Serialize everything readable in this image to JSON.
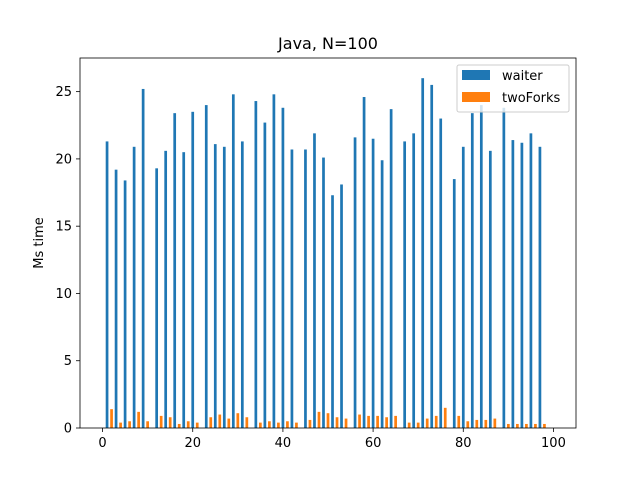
{
  "chart_data": {
    "type": "bar",
    "title": "Java, N=100",
    "xlabel": "",
    "ylabel": "Ms time",
    "xlim": [
      -5,
      105
    ],
    "ylim": [
      0,
      27.5
    ],
    "x_ticks": [
      "0",
      "20",
      "40",
      "60",
      "80",
      "100"
    ],
    "y_ticks": [
      "0",
      "5",
      "10",
      "15",
      "20",
      "25"
    ],
    "legend_position": "top-right",
    "grid": false,
    "series": [
      {
        "name": "waiter",
        "color": "#1f77b4",
        "x": [
          1,
          3,
          5,
          7,
          9,
          12,
          14,
          16,
          18,
          20,
          23,
          25,
          27,
          29,
          31,
          34,
          36,
          38,
          40,
          42,
          45,
          47,
          49,
          51,
          53,
          56,
          58,
          60,
          62,
          64,
          67,
          69,
          71,
          73,
          75,
          78,
          80,
          82,
          84,
          86,
          89,
          91,
          93,
          95,
          97
        ],
        "values": [
          21.3,
          19.2,
          18.4,
          20.9,
          25.2,
          19.3,
          20.6,
          23.4,
          20.5,
          23.5,
          24.0,
          21.1,
          20.9,
          24.8,
          21.3,
          24.3,
          22.7,
          24.8,
          23.8,
          20.7,
          20.7,
          21.9,
          20.1,
          17.3,
          18.1,
          21.6,
          24.6,
          21.5,
          19.9,
          23.7,
          21.3,
          21.9,
          26.0,
          25.5,
          23.0,
          18.5,
          20.9,
          23.4,
          24.0,
          20.6,
          23.8,
          21.4,
          21.2,
          21.9,
          20.9
        ]
      },
      {
        "name": "twoForks",
        "color": "#ff7f0e",
        "x": [
          2,
          4,
          6,
          8,
          10,
          13,
          15,
          17,
          19,
          21,
          24,
          26,
          28,
          30,
          32,
          35,
          37,
          39,
          41,
          43,
          46,
          48,
          50,
          52,
          54,
          57,
          59,
          61,
          63,
          65,
          68,
          70,
          72,
          74,
          76,
          79,
          81,
          83,
          85,
          87,
          90,
          92,
          94,
          96,
          98
        ],
        "values": [
          1.4,
          0.4,
          0.5,
          1.2,
          0.5,
          0.9,
          0.8,
          0.3,
          0.5,
          0.4,
          0.8,
          1.0,
          0.7,
          1.1,
          0.8,
          0.4,
          0.5,
          0.4,
          0.5,
          0.4,
          0.6,
          1.2,
          1.1,
          0.8,
          0.7,
          1.0,
          0.9,
          0.9,
          0.8,
          0.9,
          0.4,
          0.4,
          0.7,
          0.9,
          1.5,
          0.9,
          0.5,
          0.6,
          0.6,
          0.7,
          0.3,
          0.3,
          0.3,
          0.3,
          0.3
        ]
      }
    ]
  }
}
